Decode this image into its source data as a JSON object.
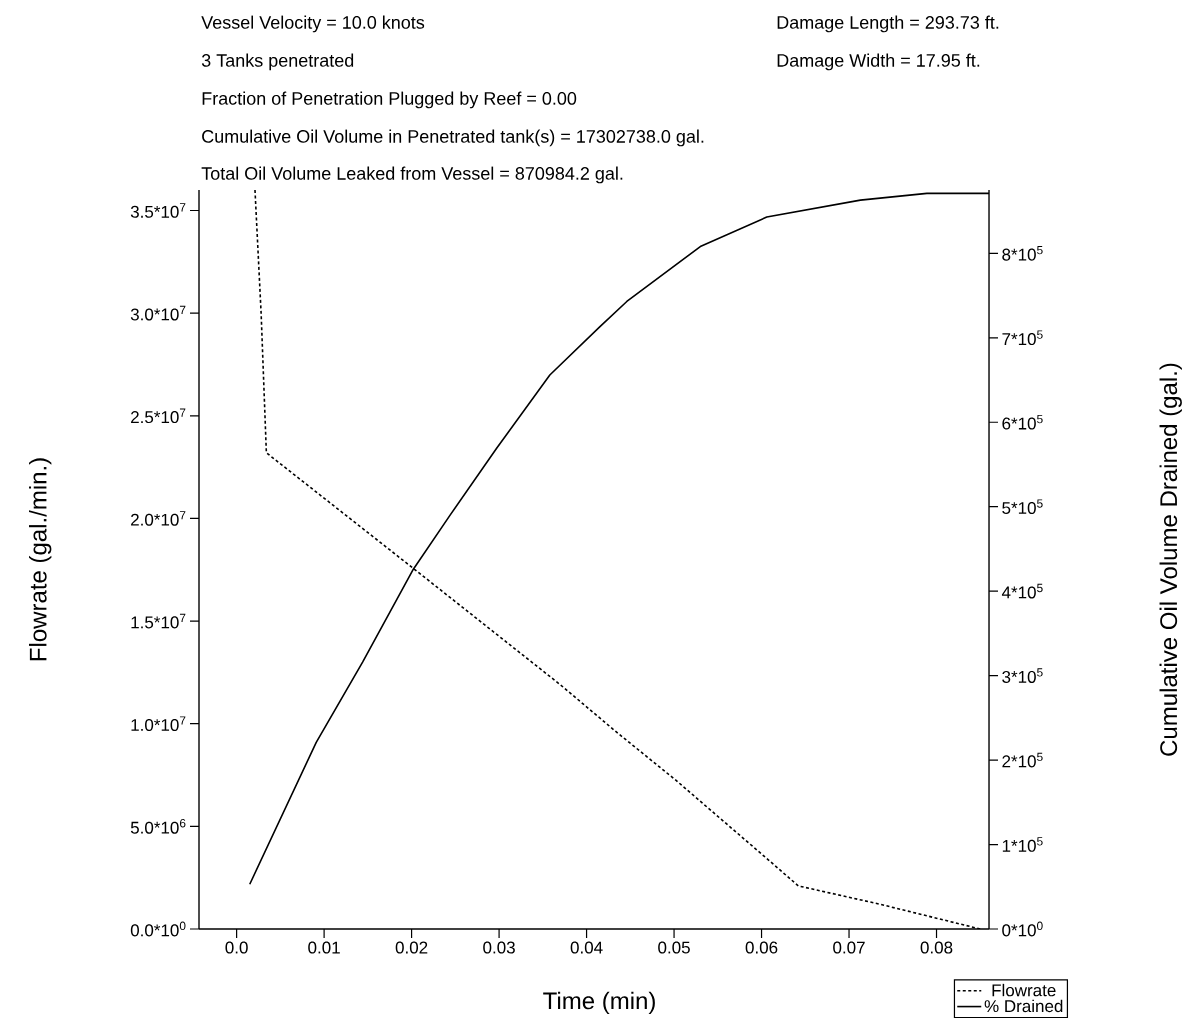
{
  "chart_data": {
    "type": "line",
    "annotations": [
      "Vessel Velocity = 10.0 knots",
      "Damage Length = 293.73 ft.",
      "3 Tanks penetrated",
      "Damage Width = 17.95 ft.",
      "Fraction of Penetration Plugged by Reef = 0.00",
      "Cumulative Oil Volume in Penetrated tank(s) = 17302738.0 gal.",
      "Total Oil Volume Leaked from Vessel = 870984.2 gal."
    ],
    "xlabel": "Time (min)",
    "ylabel": "Flowrate (gal./min.)",
    "y2label": "Cumulative Oil Volume Drained (gal.)",
    "xlim": [
      -0.0043,
      0.086
    ],
    "xticks": [
      {
        "value": 0,
        "label": "0.0"
      },
      0.01,
      0.02,
      0.03,
      0.04,
      0.05,
      0.06,
      0.07,
      0.08
    ],
    "ylim": [
      0,
      36000000
    ],
    "yticks": [
      {
        "value": 0,
        "label": "0.0*10$^{0}$"
      },
      {
        "value": 5000000,
        "label": "5.0*10$^{6}$"
      },
      {
        "value": 10000000,
        "label": "1.0*10$^{7}$"
      },
      {
        "value": 15000000,
        "label": "1.5*10$^{7}$"
      },
      {
        "value": 20000000,
        "label": "2.0*10$^{7}$"
      },
      {
        "value": 25000000,
        "label": "2.5*10$^{7}$"
      },
      {
        "value": 30000000,
        "label": "3.0*10$^{7}$"
      },
      {
        "value": 35000000,
        "label": "3.5*10$^{7}$"
      }
    ],
    "y2lim": [
      0,
      875000
    ],
    "y2ticks": [
      {
        "value": 0,
        "label": "0*10$^{0}$"
      },
      {
        "value": 100000,
        "label": "1*10$^{5}$"
      },
      {
        "value": 200000,
        "label": "2*10$^{5}$"
      },
      {
        "value": 300000,
        "label": "3*10$^{5}$"
      },
      {
        "value": 400000,
        "label": "4*10$^{5}$"
      },
      {
        "value": 500000,
        "label": "5*10$^{5}$"
      },
      {
        "value": 600000,
        "label": "6*10$^{5}$"
      },
      {
        "value": 700000,
        "label": "7*10$^{5}$"
      },
      {
        "value": 800000,
        "label": "8*10$^{5}$"
      }
    ],
    "legend": "bottom right",
    "series": [
      {
        "name": "Flowrate",
        "color": "#000000",
        "line_style": "dashed",
        "x": [
          0.0021,
          0.0028,
          0.0034,
          0.0201,
          0.037,
          0.0434,
          0.0502,
          0.0608,
          0.0642,
          0.0736,
          0.085
        ],
        "values": [
          36000000,
          30000000,
          23200000,
          17600000,
          11900000,
          9600000,
          7250000,
          3360000,
          2100000,
          1200000,
          0
        ]
      },
      {
        "name": "% Drained",
        "color": "#000000",
        "line_style": "solid",
        "axis": "y2",
        "x": [
          0.0015,
          0.0091,
          0.0144,
          0.0202,
          0.0244,
          0.0297,
          0.0358,
          0.0415,
          0.0446,
          0.053,
          0.0606,
          0.0713,
          0.0789,
          0.086
        ],
        "values": [
          53000,
          221000,
          316000,
          426000,
          490000,
          569000,
          656000,
          713000,
          743000,
          808000,
          843000,
          863000,
          871000,
          871000
        ]
      }
    ]
  }
}
